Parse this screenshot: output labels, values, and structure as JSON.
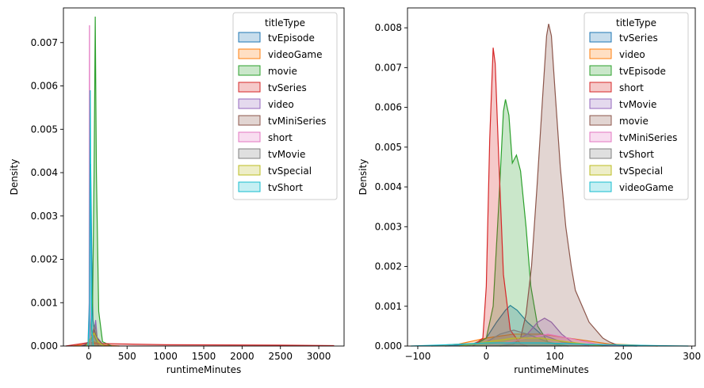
{
  "chart_data": [
    {
      "type": "area",
      "xlabel": "runtimeMinutes",
      "ylabel": "Density",
      "xlim": [
        -330,
        3330
      ],
      "ylim": [
        0,
        0.0078
      ],
      "xticks": [
        0,
        500,
        1000,
        1500,
        2000,
        2500,
        3000
      ],
      "xtick_labels": [
        "0",
        "500",
        "1000",
        "1500",
        "2000",
        "2500",
        "3000"
      ],
      "yticks": [
        0,
        0.001,
        0.002,
        0.003,
        0.004,
        0.005,
        0.006,
        0.007
      ],
      "ytick_labels": [
        "0.000",
        "0.001",
        "0.002",
        "0.003",
        "0.004",
        "0.005",
        "0.006",
        "0.007"
      ],
      "grid": false,
      "legend": {
        "title": "titleType",
        "placement": "upper-right",
        "entries": [
          "tvEpisode",
          "videoGame",
          "movie",
          "tvSeries",
          "video",
          "tvMiniSeries",
          "short",
          "tvMovie",
          "tvSpecial",
          "tvShort"
        ]
      },
      "series": [
        {
          "name": "tvEpisode",
          "color": "#1f77b4",
          "points": [
            [
              -80,
              0
            ],
            [
              0,
              0.0001
            ],
            [
              10,
              0.0008
            ],
            [
              25,
              0.0042
            ],
            [
              40,
              0.002
            ],
            [
              55,
              0.0006
            ],
            [
              80,
              0.0002
            ],
            [
              130,
              0
            ]
          ]
        },
        {
          "name": "videoGame",
          "color": "#ff7f0e",
          "points": [
            [
              -200,
              0
            ],
            [
              0,
              5e-05
            ],
            [
              60,
              0.0001
            ],
            [
              200,
              2e-05
            ],
            [
              400,
              0
            ]
          ]
        },
        {
          "name": "movie",
          "color": "#2ca02c",
          "points": [
            [
              -60,
              0
            ],
            [
              20,
              0.0001
            ],
            [
              50,
              0.001
            ],
            [
              70,
              0.004
            ],
            [
              85,
              0.0076
            ],
            [
              100,
              0.004
            ],
            [
              130,
              0.0008
            ],
            [
              180,
              0.0001
            ],
            [
              300,
              0
            ]
          ]
        },
        {
          "name": "tvSeries",
          "color": "#d62728",
          "points": [
            [
              -300,
              0
            ],
            [
              0,
              8e-05
            ],
            [
              100,
              6e-05
            ],
            [
              1000,
              3e-05
            ],
            [
              2500,
              2e-05
            ],
            [
              3200,
              1e-05
            ]
          ]
        },
        {
          "name": "video",
          "color": "#9467bd",
          "points": [
            [
              -100,
              0
            ],
            [
              20,
              0.0001
            ],
            [
              60,
              0.0002
            ],
            [
              90,
              0.0006
            ],
            [
              110,
              0.0002
            ],
            [
              200,
              0
            ]
          ]
        },
        {
          "name": "tvMiniSeries",
          "color": "#8c564b",
          "points": [
            [
              -80,
              0
            ],
            [
              10,
              0.0001
            ],
            [
              40,
              0.0002
            ],
            [
              70,
              0.0004
            ],
            [
              100,
              0.0002
            ],
            [
              200,
              0
            ]
          ]
        },
        {
          "name": "short",
          "color": "#e377c2",
          "points": [
            [
              -10,
              0
            ],
            [
              5,
              0.001
            ],
            [
              10,
              0.0074
            ],
            [
              15,
              0.001
            ],
            [
              25,
              0
            ]
          ]
        },
        {
          "name": "tvMovie",
          "color": "#7f7f7f",
          "points": [
            [
              -30,
              0
            ],
            [
              30,
              0.0002
            ],
            [
              80,
              0.0005
            ],
            [
              120,
              0.0001
            ],
            [
              200,
              0
            ]
          ]
        },
        {
          "name": "tvSpecial",
          "color": "#bcbd22",
          "points": [
            [
              -30,
              0
            ],
            [
              30,
              0.0002
            ],
            [
              70,
              0.0003
            ],
            [
              120,
              0.0001
            ],
            [
              200,
              0
            ]
          ]
        },
        {
          "name": "tvShort",
          "color": "#17becf",
          "points": [
            [
              -10,
              0
            ],
            [
              10,
              0.001
            ],
            [
              20,
              0.0059
            ],
            [
              28,
              0.003
            ],
            [
              40,
              0.0004
            ],
            [
              60,
              0
            ]
          ]
        }
      ]
    },
    {
      "type": "area",
      "xlabel": "runtimeMinutes",
      "ylabel": "Density",
      "xlim": [
        -115,
        305
      ],
      "ylim": [
        0,
        0.0085
      ],
      "xticks": [
        -100,
        0,
        100,
        200,
        300
      ],
      "xtick_labels": [
        "−100",
        "0",
        "100",
        "200",
        "300"
      ],
      "yticks": [
        0,
        0.001,
        0.002,
        0.003,
        0.004,
        0.005,
        0.006,
        0.007,
        0.008
      ],
      "ytick_labels": [
        "0.000",
        "0.001",
        "0.002",
        "0.003",
        "0.004",
        "0.005",
        "0.006",
        "0.007",
        "0.008"
      ],
      "grid": false,
      "legend": {
        "title": "titleType",
        "placement": "upper-right",
        "entries": [
          "tvSeries",
          "video",
          "tvEpisode",
          "short",
          "tvMovie",
          "movie",
          "tvMiniSeries",
          "tvShort",
          "tvSpecial",
          "videoGame"
        ]
      },
      "series": [
        {
          "name": "tvSeries",
          "color": "#1f77b4",
          "points": [
            [
              -60,
              0
            ],
            [
              -20,
              5e-05
            ],
            [
              0,
              0.0002
            ],
            [
              15,
              0.0006
            ],
            [
              28,
              0.0009
            ],
            [
              35,
              0.00102
            ],
            [
              45,
              0.0009
            ],
            [
              60,
              0.0006
            ],
            [
              80,
              0.0003
            ],
            [
              110,
              0.0001
            ],
            [
              150,
              3e-05
            ],
            [
              220,
              0
            ]
          ]
        },
        {
          "name": "video",
          "color": "#ff7f0e",
          "points": [
            [
              -80,
              0
            ],
            [
              -40,
              5e-05
            ],
            [
              0,
              0.0002
            ],
            [
              40,
              0.0003
            ],
            [
              80,
              0.0003
            ],
            [
              120,
              0.0002
            ],
            [
              180,
              5e-05
            ],
            [
              250,
              0
            ]
          ]
        },
        {
          "name": "tvEpisode",
          "color": "#2ca02c",
          "points": [
            [
              -20,
              0
            ],
            [
              0,
              0.0002
            ],
            [
              10,
              0.001
            ],
            [
              18,
              0.0035
            ],
            [
              25,
              0.0059
            ],
            [
              28,
              0.0062
            ],
            [
              33,
              0.0058
            ],
            [
              38,
              0.0046
            ],
            [
              44,
              0.0048
            ],
            [
              50,
              0.0044
            ],
            [
              58,
              0.003
            ],
            [
              65,
              0.0015
            ],
            [
              75,
              0.0005
            ],
            [
              90,
              0.0001
            ],
            [
              110,
              0
            ]
          ]
        },
        {
          "name": "short",
          "color": "#d62728",
          "points": [
            [
              -20,
              0
            ],
            [
              -5,
              0.0002
            ],
            [
              0,
              0.0015
            ],
            [
              5,
              0.0052
            ],
            [
              10,
              0.0075
            ],
            [
              13,
              0.0071
            ],
            [
              18,
              0.0048
            ],
            [
              25,
              0.0018
            ],
            [
              35,
              0.0004
            ],
            [
              50,
              5e-05
            ],
            [
              60,
              0
            ]
          ]
        },
        {
          "name": "tvMovie",
          "color": "#9467bd",
          "points": [
            [
              20,
              0
            ],
            [
              40,
              0.0001
            ],
            [
              60,
              0.0003
            ],
            [
              75,
              0.0006
            ],
            [
              85,
              0.0007
            ],
            [
              95,
              0.0006
            ],
            [
              110,
              0.0003
            ],
            [
              125,
              0.0001
            ],
            [
              150,
              0
            ]
          ]
        },
        {
          "name": "movie",
          "color": "#8c564b",
          "points": [
            [
              20,
              0
            ],
            [
              40,
              5e-05
            ],
            [
              50,
              0.0002
            ],
            [
              58,
              0.0008
            ],
            [
              66,
              0.002
            ],
            [
              74,
              0.004
            ],
            [
              82,
              0.0062
            ],
            [
              88,
              0.0078
            ],
            [
              91,
              0.0081
            ],
            [
              95,
              0.0078
            ],
            [
              100,
              0.0065
            ],
            [
              108,
              0.0045
            ],
            [
              116,
              0.003
            ],
            [
              124,
              0.002
            ],
            [
              130,
              0.0014
            ],
            [
              140,
              0.001
            ],
            [
              150,
              0.0006
            ],
            [
              160,
              0.0004
            ],
            [
              170,
              0.0002
            ],
            [
              180,
              0.0001
            ],
            [
              195,
              0
            ]
          ]
        },
        {
          "name": "tvMiniSeries",
          "color": "#e377c2",
          "points": [
            [
              0,
              0
            ],
            [
              30,
              0.0001
            ],
            [
              60,
              0.0002
            ],
            [
              90,
              0.0003
            ],
            [
              120,
              0.0002
            ],
            [
              160,
              5e-05
            ],
            [
              200,
              0
            ]
          ]
        },
        {
          "name": "tvShort",
          "color": "#7f7f7f",
          "points": [
            [
              -30,
              0
            ],
            [
              0,
              0.0001
            ],
            [
              20,
              0.0003
            ],
            [
              40,
              0.0004
            ],
            [
              60,
              0.0003
            ],
            [
              90,
              0.0001
            ],
            [
              120,
              0
            ]
          ]
        },
        {
          "name": "tvSpecial",
          "color": "#bcbd22",
          "points": [
            [
              -40,
              0
            ],
            [
              0,
              0.0001
            ],
            [
              40,
              0.0002
            ],
            [
              80,
              0.0002
            ],
            [
              120,
              0.0001
            ],
            [
              170,
              0
            ]
          ]
        },
        {
          "name": "videoGame",
          "color": "#17becf",
          "points": [
            [
              -110,
              0
            ],
            [
              -60,
              3e-05
            ],
            [
              0,
              8e-05
            ],
            [
              80,
              8e-05
            ],
            [
              160,
              4e-05
            ],
            [
              250,
              1e-05
            ],
            [
              295,
              0
            ]
          ]
        }
      ]
    }
  ]
}
